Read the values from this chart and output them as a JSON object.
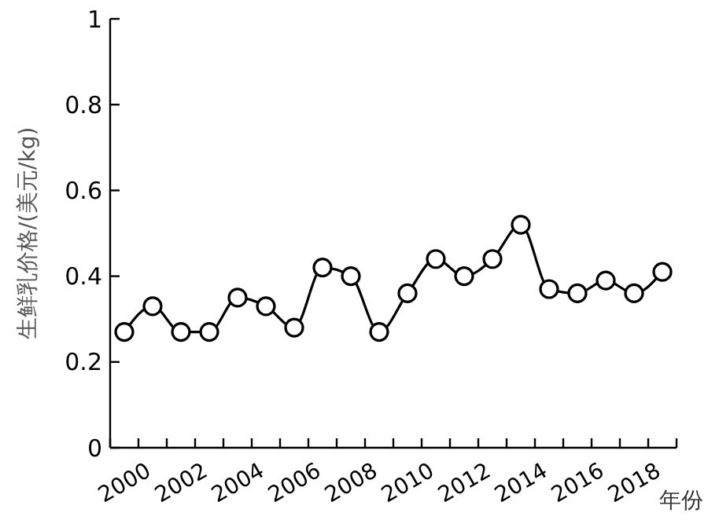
{
  "chart_data": {
    "type": "line",
    "xlabel": "年份",
    "ylabel": "生鲜乳价格/(美元/kg)",
    "categories": [
      "2000",
      null,
      "2002",
      null,
      "2004",
      null,
      "2006",
      null,
      "2008",
      null,
      "2010",
      null,
      "2012",
      null,
      "2014",
      null,
      "2016",
      null,
      "2018",
      null
    ],
    "series": [
      {
        "color": "#000000",
        "values": [
          0.27,
          0.33,
          0.27,
          0.27,
          0.35,
          0.33,
          0.28,
          0.42,
          0.4,
          0.27,
          0.36,
          0.44,
          0.4,
          0.44,
          0.52,
          0.37,
          0.36,
          0.39,
          0.36,
          0.41
        ]
      }
    ],
    "ylim": [
      0,
      1
    ],
    "yticks": [
      0,
      0.2,
      0.4,
      0.6,
      0.8,
      1
    ],
    "marker": "circle",
    "grid": false
  }
}
